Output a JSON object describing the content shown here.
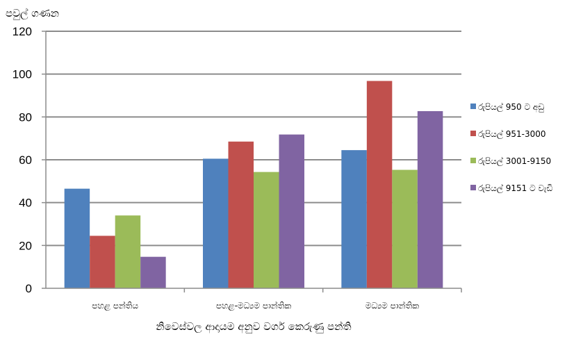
{
  "chart_data": {
    "type": "bar",
    "ylabel": "පවුල් ගණන",
    "xlabel": "නිවෙස්වල ආදායම අනුව වර්ග කෙරුණු පන්ති",
    "categories": [
      "පහළ පන්තිය",
      "පහළ-මධ්‍යම පාන්තික",
      "මධ්‍යම පාන්තික"
    ],
    "ylim": [
      0,
      120
    ],
    "yticks": [
      0,
      20,
      40,
      60,
      80,
      100,
      120
    ],
    "grid": true,
    "legend_position": "right",
    "series": [
      {
        "name": "රුපියල් 950 ට අඩු",
        "color": "#4f81bd",
        "values": [
          46.5,
          60.5,
          64.5
        ]
      },
      {
        "name": "රුපියල් 951-3000",
        "color": "#c0504d",
        "values": [
          24.5,
          68.5,
          96.8
        ]
      },
      {
        "name": "රුපියල් 3001-9150",
        "color": "#9bbb59",
        "values": [
          34,
          54.3,
          55.3
        ]
      },
      {
        "name": "රුපියල් 9151 ට වැඩි",
        "color": "#8064a2",
        "values": [
          14.7,
          71.8,
          82.7
        ]
      }
    ]
  }
}
